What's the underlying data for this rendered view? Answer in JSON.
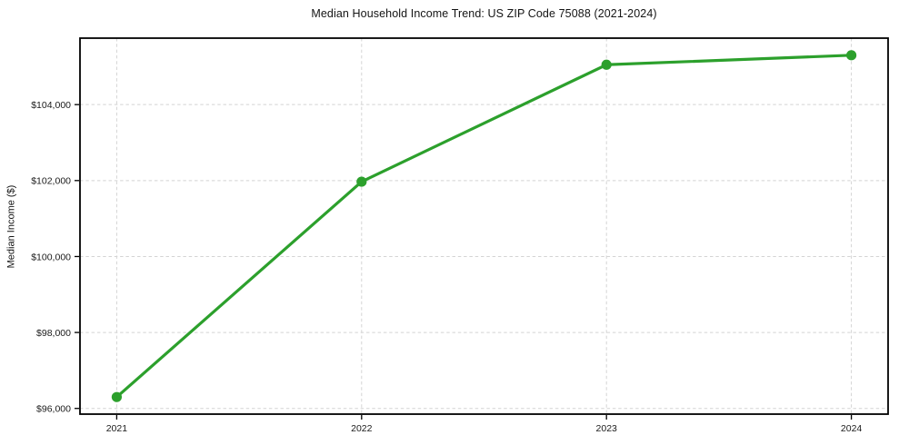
{
  "chart_data": {
    "type": "line",
    "title": "Median Household Income Trend: US ZIP Code 75088 (2021-2024)",
    "xlabel": "",
    "ylabel": "Median Income ($)",
    "x": [
      2021,
      2022,
      2023,
      2024
    ],
    "series": [
      {
        "name": "Median Household Income",
        "values": [
          96300,
          101970,
          105050,
          105300
        ]
      }
    ],
    "xticks": [
      2021,
      2022,
      2023,
      2024
    ],
    "xtick_labels": [
      "2021",
      "2022",
      "2023",
      "2024"
    ],
    "yticks": [
      96000,
      98000,
      100000,
      102000,
      104000
    ],
    "ytick_labels": [
      "$96,000",
      "$98,000",
      "$100,000",
      "$102,000",
      "$104,000"
    ],
    "xlim": [
      2020.85,
      2024.15
    ],
    "ylim": [
      95850,
      105750
    ],
    "grid": true,
    "grid_style": "dashed",
    "legend": "none",
    "line_color": "#2ca02c",
    "grid_color": "#d4d4d4",
    "frame_color": "#000000",
    "marker": "o"
  }
}
